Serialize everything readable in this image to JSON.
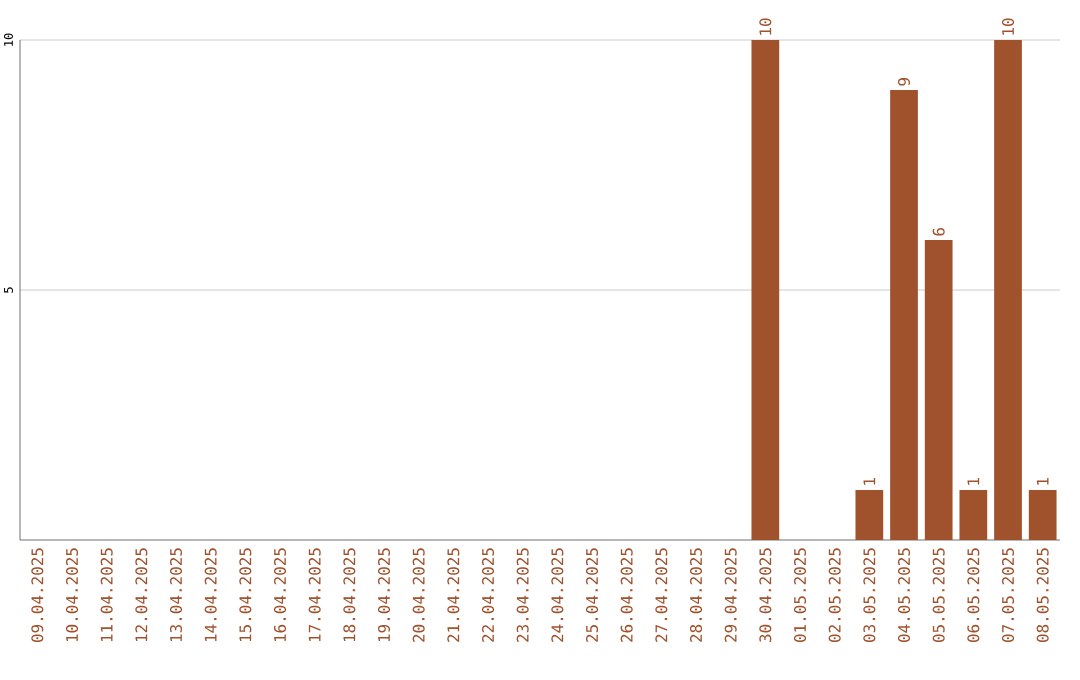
{
  "chart_data": {
    "type": "bar",
    "categories": [
      "09.04.2025",
      "10.04.2025",
      "11.04.2025",
      "12.04.2025",
      "13.04.2025",
      "14.04.2025",
      "15.04.2025",
      "16.04.2025",
      "17.04.2025",
      "18.04.2025",
      "19.04.2025",
      "20.04.2025",
      "21.04.2025",
      "22.04.2025",
      "23.04.2025",
      "24.04.2025",
      "25.04.2025",
      "26.04.2025",
      "27.04.2025",
      "28.04.2025",
      "29.04.2025",
      "30.04.2025",
      "01.05.2025",
      "02.05.2025",
      "03.05.2025",
      "04.05.2025",
      "05.05.2025",
      "06.05.2025",
      "07.05.2025",
      "08.05.2025"
    ],
    "values": [
      0,
      0,
      0,
      0,
      0,
      0,
      0,
      0,
      0,
      0,
      0,
      0,
      0,
      0,
      0,
      0,
      0,
      0,
      0,
      0,
      0,
      10,
      0,
      0,
      1,
      9,
      6,
      1,
      10,
      1
    ],
    "value_labels": [
      null,
      null,
      null,
      null,
      null,
      null,
      null,
      null,
      null,
      null,
      null,
      null,
      null,
      null,
      null,
      null,
      null,
      null,
      null,
      null,
      null,
      "10",
      null,
      null,
      "1",
      "9",
      "6",
      "1",
      "10",
      "1"
    ],
    "color": "#a0522d",
    "ylim": [
      0,
      10
    ],
    "yticks": [
      5,
      10
    ],
    "grid": "y"
  }
}
